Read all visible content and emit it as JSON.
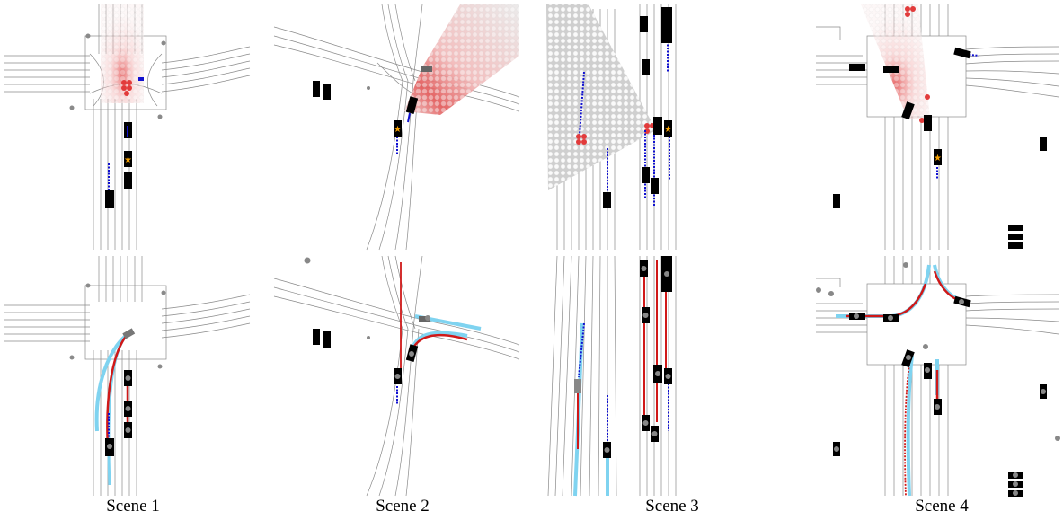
{
  "figure": {
    "captions": [
      "Scene 1",
      "Scene 2",
      "Scene 3",
      "Scene 4"
    ]
  },
  "colors": {
    "road_line": "#8a8a8a",
    "heat_strong": "#e23b3b",
    "heat_light": "#f4c9c9",
    "grid_dot": "#e6e6e6",
    "agent": "#000000",
    "trajectory_history": "#1010d0",
    "prediction": "#d01818",
    "ground_truth": "#7fd3f0",
    "marker_star": "#f5a000",
    "marker_circle": "#7a7a7a"
  },
  "legend_icons": [
    "car-icon",
    "star-icon",
    "circle-marker-icon"
  ]
}
